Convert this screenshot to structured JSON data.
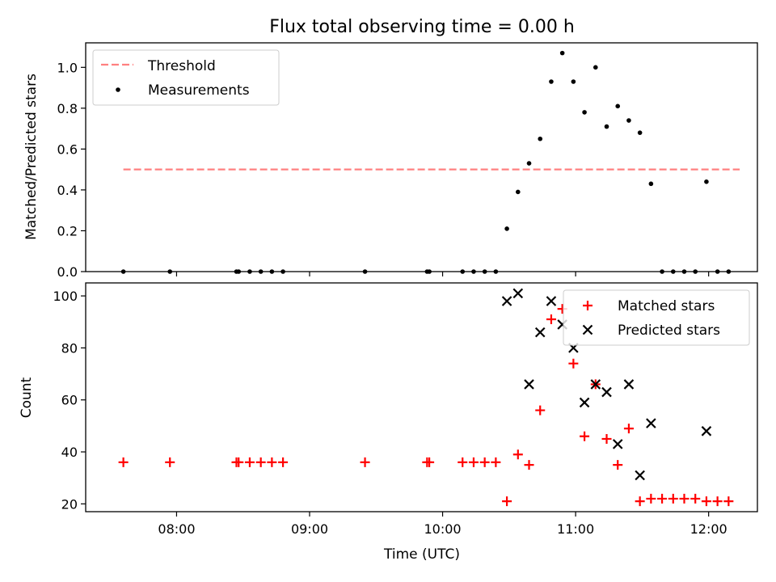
{
  "chart_data": [
    {
      "type": "scatter",
      "title": "Flux total observing time = 0.00 h",
      "xlabel": "",
      "ylabel": "Matched/Predicted stars",
      "xlim": [
        "07:19",
        "12:22"
      ],
      "ylim": [
        0,
        1.12
      ],
      "yticks": [
        0.0,
        0.2,
        0.4,
        0.6,
        0.8,
        1.0
      ],
      "ytick_labels": [
        "0.0",
        "0.2",
        "0.4",
        "0.6",
        "0.8",
        "1.0"
      ],
      "grid": false,
      "legend": {
        "placement": "top-left",
        "entries": [
          "Threshold",
          "Measurements"
        ]
      },
      "threshold": {
        "name": "Threshold",
        "x": [
          "07:36",
          "12:14"
        ],
        "value": 0.5,
        "color": "#ff8080",
        "style": "dashed"
      },
      "series": [
        {
          "name": "Measurements",
          "color": "#000000",
          "marker": "dot",
          "points": [
            [
              "07:36",
              0.0
            ],
            [
              "07:57",
              0.0
            ],
            [
              "08:27",
              0.0
            ],
            [
              "08:28",
              0.0
            ],
            [
              "08:33",
              0.0
            ],
            [
              "08:38",
              0.0
            ],
            [
              "08:43",
              0.0
            ],
            [
              "08:48",
              0.0
            ],
            [
              "09:25",
              0.0
            ],
            [
              "09:53",
              0.0
            ],
            [
              "09:54",
              0.0
            ],
            [
              "10:09",
              0.0
            ],
            [
              "10:14",
              0.0
            ],
            [
              "10:19",
              0.0
            ],
            [
              "10:24",
              0.0
            ],
            [
              "10:29",
              0.21
            ],
            [
              "10:34",
              0.39
            ],
            [
              "10:39",
              0.53
            ],
            [
              "10:44",
              0.65
            ],
            [
              "10:49",
              0.93
            ],
            [
              "10:54",
              1.07
            ],
            [
              "10:59",
              0.93
            ],
            [
              "11:04",
              0.78
            ],
            [
              "11:09",
              1.0
            ],
            [
              "11:14",
              0.71
            ],
            [
              "11:19",
              0.81
            ],
            [
              "11:24",
              0.74
            ],
            [
              "11:29",
              0.68
            ],
            [
              "11:34",
              0.43
            ],
            [
              "11:39",
              0.0
            ],
            [
              "11:44",
              0.0
            ],
            [
              "11:49",
              0.0
            ],
            [
              "11:54",
              0.0
            ],
            [
              "11:59",
              0.44
            ],
            [
              "12:04",
              0.0
            ],
            [
              "12:09",
              0.0
            ]
          ]
        }
      ]
    },
    {
      "type": "scatter",
      "title": "",
      "xlabel": "Time (UTC)",
      "ylabel": "Count",
      "xlim": [
        "07:19",
        "12:22"
      ],
      "ylim": [
        17,
        105
      ],
      "xticks": [
        "08:00",
        "09:00",
        "10:00",
        "11:00",
        "12:00"
      ],
      "yticks": [
        20,
        40,
        60,
        80,
        100
      ],
      "ytick_labels": [
        "20",
        "40",
        "60",
        "80",
        "100"
      ],
      "grid": false,
      "legend": {
        "placement": "top-right",
        "entries": [
          "Matched stars",
          "Predicted stars"
        ]
      },
      "series": [
        {
          "name": "Matched stars",
          "color": "#ff0000",
          "marker": "plus",
          "points": [
            [
              "07:36",
              36
            ],
            [
              "07:57",
              36
            ],
            [
              "08:27",
              36
            ],
            [
              "08:28",
              36
            ],
            [
              "08:33",
              36
            ],
            [
              "08:38",
              36
            ],
            [
              "08:43",
              36
            ],
            [
              "08:48",
              36
            ],
            [
              "09:25",
              36
            ],
            [
              "09:53",
              36
            ],
            [
              "09:54",
              36
            ],
            [
              "10:09",
              36
            ],
            [
              "10:14",
              36
            ],
            [
              "10:19",
              36
            ],
            [
              "10:24",
              36
            ],
            [
              "10:29",
              21
            ],
            [
              "10:34",
              39
            ],
            [
              "10:39",
              35
            ],
            [
              "10:44",
              56
            ],
            [
              "10:49",
              91
            ],
            [
              "10:54",
              95
            ],
            [
              "10:59",
              74
            ],
            [
              "11:04",
              46
            ],
            [
              "11:09",
              66
            ],
            [
              "11:14",
              45
            ],
            [
              "11:19",
              35
            ],
            [
              "11:24",
              49
            ],
            [
              "11:29",
              21
            ],
            [
              "11:34",
              22
            ],
            [
              "11:39",
              22
            ],
            [
              "11:44",
              22
            ],
            [
              "11:49",
              22
            ],
            [
              "11:54",
              22
            ],
            [
              "11:59",
              21
            ],
            [
              "12:04",
              21
            ],
            [
              "12:09",
              21
            ]
          ]
        },
        {
          "name": "Predicted stars",
          "color": "#000000",
          "marker": "x",
          "points": [
            [
              "10:29",
              98
            ],
            [
              "10:34",
              101
            ],
            [
              "10:39",
              66
            ],
            [
              "10:44",
              86
            ],
            [
              "10:49",
              98
            ],
            [
              "10:54",
              89
            ],
            [
              "10:59",
              80
            ],
            [
              "11:04",
              59
            ],
            [
              "11:09",
              66
            ],
            [
              "11:14",
              63
            ],
            [
              "11:19",
              43
            ],
            [
              "11:24",
              66
            ],
            [
              "11:29",
              31
            ],
            [
              "11:34",
              51
            ],
            [
              "11:59",
              48
            ]
          ]
        }
      ]
    }
  ]
}
